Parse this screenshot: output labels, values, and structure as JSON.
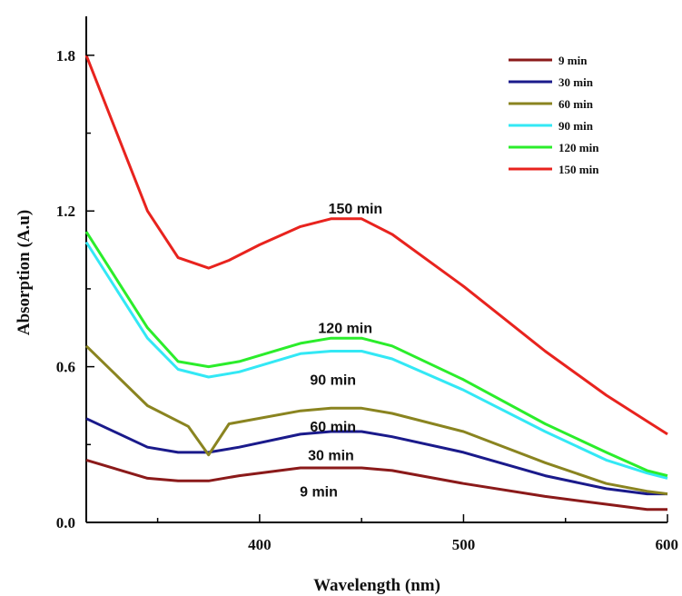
{
  "chart_data": {
    "type": "line",
    "title": "",
    "xlabel": "Wavelength (nm)",
    "ylabel": "Absorption (A.u)",
    "xlim": [
      315,
      600
    ],
    "ylim": [
      0.0,
      1.95
    ],
    "x_ticks": [
      400,
      500,
      600
    ],
    "x_tick_labels": [
      "400",
      "500",
      "600"
    ],
    "y_ticks": [
      0.0,
      0.6,
      1.2,
      1.8
    ],
    "y_tick_labels": [
      "0.0",
      "0.6",
      "1.2",
      "1.8"
    ],
    "grid": false,
    "legend_position": "top-right",
    "series": [
      {
        "name": "9 min",
        "color": "#8b1a1a",
        "x": [
          315,
          345,
          360,
          375,
          390,
          420,
          435,
          450,
          465,
          500,
          540,
          570,
          590,
          600
        ],
        "y": [
          0.24,
          0.17,
          0.16,
          0.16,
          0.18,
          0.21,
          0.21,
          0.21,
          0.2,
          0.15,
          0.1,
          0.07,
          0.05,
          0.05
        ]
      },
      {
        "name": "30 min",
        "color": "#1a1a8b",
        "x": [
          315,
          345,
          360,
          375,
          390,
          420,
          435,
          450,
          465,
          500,
          540,
          570,
          590,
          600
        ],
        "y": [
          0.4,
          0.29,
          0.27,
          0.27,
          0.29,
          0.34,
          0.35,
          0.35,
          0.33,
          0.27,
          0.18,
          0.13,
          0.11,
          0.11
        ]
      },
      {
        "name": "60 min",
        "color": "#8a8420",
        "x": [
          315,
          345,
          365,
          375,
          385,
          420,
          435,
          450,
          465,
          500,
          540,
          570,
          590,
          600
        ],
        "y": [
          0.68,
          0.45,
          0.37,
          0.26,
          0.38,
          0.43,
          0.44,
          0.44,
          0.42,
          0.35,
          0.23,
          0.15,
          0.12,
          0.11
        ]
      },
      {
        "name": "90 min",
        "color": "#33e8f5",
        "x": [
          315,
          345,
          360,
          375,
          390,
          420,
          435,
          450,
          465,
          500,
          540,
          570,
          590,
          600
        ],
        "y": [
          1.08,
          0.71,
          0.59,
          0.56,
          0.58,
          0.65,
          0.66,
          0.66,
          0.63,
          0.51,
          0.35,
          0.24,
          0.19,
          0.17
        ]
      },
      {
        "name": "120 min",
        "color": "#2bed2b",
        "x": [
          315,
          345,
          360,
          375,
          390,
          420,
          435,
          450,
          465,
          500,
          540,
          570,
          590,
          600
        ],
        "y": [
          1.12,
          0.75,
          0.62,
          0.6,
          0.62,
          0.69,
          0.71,
          0.71,
          0.68,
          0.55,
          0.38,
          0.27,
          0.2,
          0.18
        ]
      },
      {
        "name": "150 min",
        "color": "#e8231e",
        "x": [
          315,
          335,
          345,
          360,
          375,
          385,
          400,
          420,
          435,
          450,
          465,
          500,
          540,
          570,
          590,
          600
        ],
        "y": [
          1.8,
          1.4,
          1.2,
          1.02,
          0.98,
          1.01,
          1.07,
          1.14,
          1.17,
          1.17,
          1.11,
          0.91,
          0.66,
          0.49,
          0.39,
          0.34
        ]
      }
    ],
    "annotations": [
      {
        "text": "150 min",
        "x": 447,
        "y": 1.19
      },
      {
        "text": "120 min",
        "x": 442,
        "y": 0.73
      },
      {
        "text": "90 min",
        "x": 436,
        "y": 0.53
      },
      {
        "text": "60 min",
        "x": 436,
        "y": 0.35
      },
      {
        "text": "30 min",
        "x": 435,
        "y": 0.24
      },
      {
        "text": "9 min",
        "x": 429,
        "y": 0.1
      }
    ]
  }
}
